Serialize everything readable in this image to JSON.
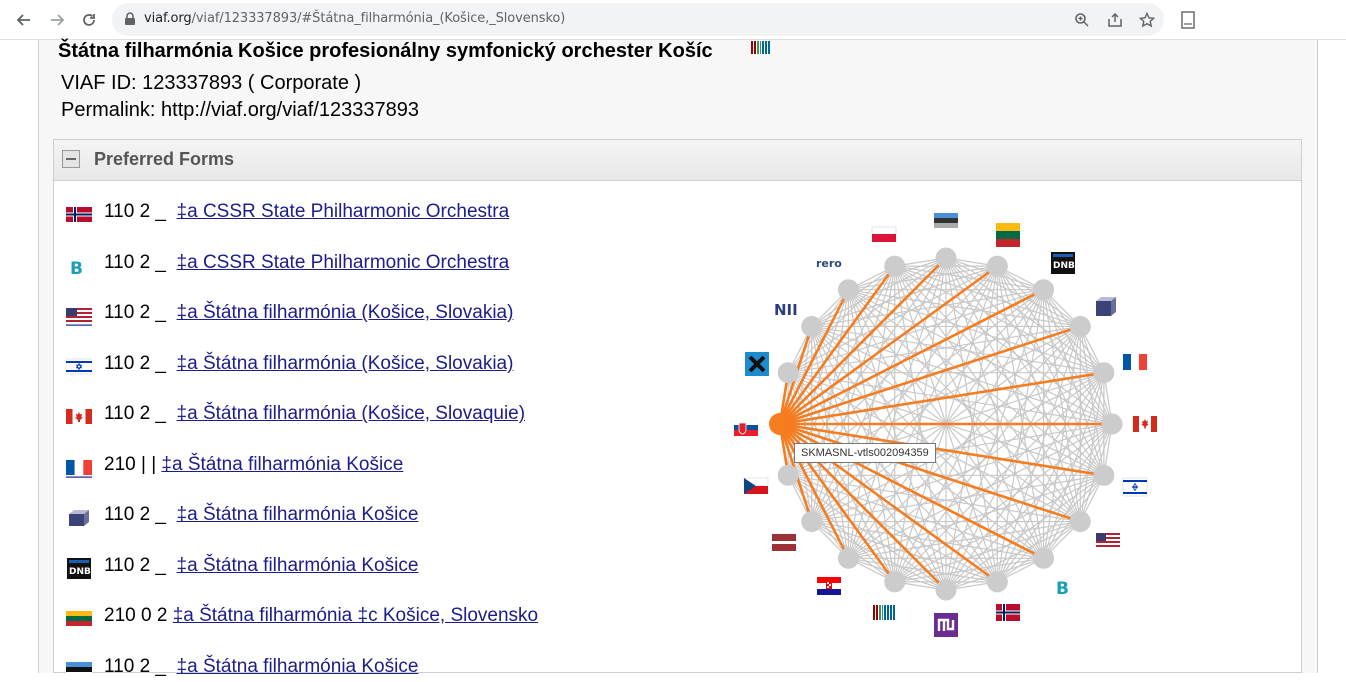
{
  "browser": {
    "url_host": "viaf.org",
    "url_path": "/viaf/123337893/#Štátna_filharmónia_(Košice,_Slovensko)"
  },
  "record": {
    "title": "Štátna filharmónia Košice profesionálny symfonický orchester Košíc",
    "viaf_id": "VIAF ID: 123337893 ( Corporate )",
    "permalink": "Permalink: http://viaf.org/viaf/123337893"
  },
  "preferred_forms": {
    "heading": "Preferred Forms",
    "rows": [
      {
        "source": "Norway",
        "code": "110 2 _",
        "text": "‡a  CSSR State Philharmonic Orchestra"
      },
      {
        "source": "BIBSYS",
        "code": "110 2 _",
        "text": "‡a  CSSR State Philharmonic Orchestra"
      },
      {
        "source": "Library of Congress",
        "code": "110 2 _",
        "text": "‡a  Štátna filharmónia (Košice, Slovakia)"
      },
      {
        "source": "Israel",
        "code": "110 2 _",
        "text": "‡a  Štátna filharmónia (Košice, Slovakia)"
      },
      {
        "source": "Canada",
        "code": "110 2 _",
        "text": "‡a  Štátna filharmónia (Košice, Slovaquie)"
      },
      {
        "source": "France",
        "code": "210 | |",
        "text": "‡a  Štátna filharmónia Košice"
      },
      {
        "source": "ISNI",
        "code": "110 2 _",
        "text": "‡a  Štátna filharmónia Košice"
      },
      {
        "source": "DNB",
        "code": "110 2 _",
        "text": "‡a  Štátna filharmónia Košice"
      },
      {
        "source": "Lithuania",
        "code": "210 0 2",
        "text": "‡a  Štátna filharmónia ‡c  Košice, Slovensko"
      },
      {
        "source": "Estonia",
        "code": "110 2 _",
        "text": "‡a  Štátna filharmónia Košice"
      }
    ]
  },
  "network": {
    "tooltip": "SKMASNL-vtls002094359",
    "labels": {
      "rero": "rero",
      "nii": "NII",
      "dnb": "DNB",
      "bibsys": "B"
    },
    "highlight_color": "#f57c1f",
    "edge_color": "#c8c8c8",
    "node_color": "#cccccc"
  }
}
